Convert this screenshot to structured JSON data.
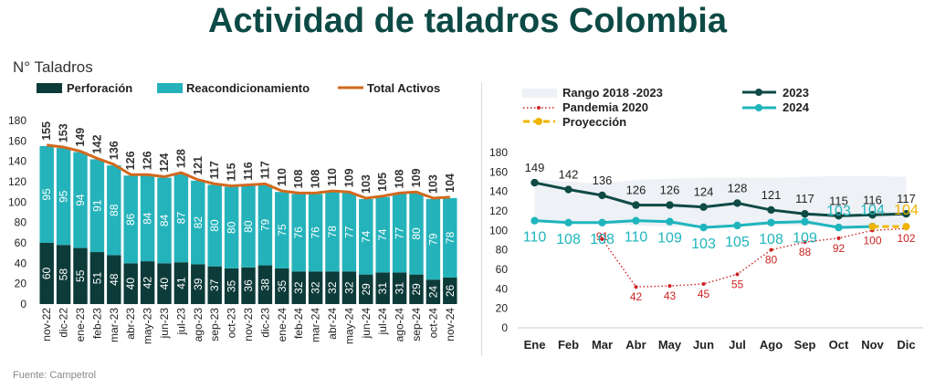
{
  "page": {
    "title": "Actividad de taladros Colombia",
    "source": "Fuente: Campetrol"
  },
  "colors": {
    "title": "#0d4a45",
    "perforacion": "#0d3b39",
    "reacondicionamiento": "#25b3bb",
    "total": "#d2691e",
    "line2023": "#0f4a45",
    "line2024": "#1fb5bd",
    "pandemia": "#cc2222",
    "proyeccion": "#f0b400",
    "rango": "#eef1f5"
  },
  "chart_data": [
    {
      "type": "bar",
      "subtitle": "N° Taladros",
      "stacked": true,
      "categories": [
        "nov-22",
        "dic-22",
        "ene-23",
        "feb-23",
        "mar-23",
        "abr-23",
        "may-23",
        "jun-23",
        "jul-23",
        "ago-23",
        "sep-23",
        "oct-23",
        "nov-23",
        "dic-23",
        "ene-24",
        "feb-24",
        "mar-24",
        "abr-24",
        "may-24",
        "jun-24",
        "jul-24",
        "ago-24",
        "sep-24",
        "oct-24",
        "nov-24"
      ],
      "series": [
        {
          "name": "Perforación",
          "values": [
            60,
            58,
            55,
            51,
            48,
            40,
            42,
            40,
            41,
            39,
            37,
            35,
            36,
            38,
            35,
            32,
            32,
            32,
            32,
            29,
            31,
            31,
            29,
            24,
            26
          ]
        },
        {
          "name": "Reacondicionamiento",
          "values": [
            95,
            95,
            94,
            91,
            88,
            86,
            84,
            84,
            87,
            82,
            80,
            80,
            80,
            79,
            75,
            76,
            76,
            78,
            77,
            74,
            74,
            77,
            80,
            79,
            78
          ]
        }
      ],
      "total_series": {
        "name": "Total Activos",
        "values": [
          155,
          153,
          149,
          142,
          136,
          126,
          126,
          124,
          128,
          121,
          117,
          115,
          116,
          117,
          110,
          108,
          108,
          110,
          109,
          103,
          105,
          108,
          109,
          103,
          104
        ]
      },
      "ylim": [
        0,
        180
      ],
      "yticks": [
        0,
        20,
        40,
        60,
        80,
        100,
        120,
        140,
        160,
        180
      ],
      "legend": [
        "Perforación",
        "Reacondicionamiento",
        "Total Activos"
      ]
    },
    {
      "type": "line",
      "categories": [
        "Ene",
        "Feb",
        "Mar",
        "Abr",
        "May",
        "Jun",
        "Jul",
        "Ago",
        "Sep",
        "Oct",
        "Nov",
        "Dic"
      ],
      "series": [
        {
          "name": "2023",
          "values": [
            149,
            142,
            136,
            126,
            126,
            124,
            128,
            121,
            117,
            115,
            116,
            117
          ]
        },
        {
          "name": "2024",
          "values": [
            110,
            108,
            108,
            110,
            109,
            103,
            105,
            108,
            109,
            103,
            104,
            null
          ]
        },
        {
          "name": "Pandemia 2020",
          "values": [
            null,
            null,
            91,
            42,
            43,
            45,
            55,
            80,
            88,
            92,
            100,
            102
          ]
        },
        {
          "name": "Proyección",
          "values": [
            null,
            null,
            null,
            null,
            null,
            null,
            null,
            null,
            null,
            null,
            104,
            104
          ]
        }
      ],
      "labels_2024": [
        "110",
        "108",
        "108",
        "110",
        "109",
        "103",
        "105",
        "108",
        "109",
        "103",
        "104"
      ],
      "proyeccion_label": "104",
      "rango": {
        "name": "Rango 2018 -2023",
        "upper": [
          152,
          150,
          148,
          152,
          153,
          154,
          154,
          154,
          155,
          156,
          156,
          155
        ],
        "lower": [
          110,
          108,
          107,
          105,
          104,
          103,
          104,
          105,
          105,
          104,
          103,
          104
        ]
      },
      "ylim": [
        0,
        180
      ],
      "yticks": [
        0,
        20,
        40,
        60,
        80,
        100,
        120,
        140,
        160,
        180
      ],
      "legend": [
        "Rango 2018 -2023",
        "Pandemia 2020",
        "Proyección",
        "2023",
        "2024"
      ]
    }
  ]
}
